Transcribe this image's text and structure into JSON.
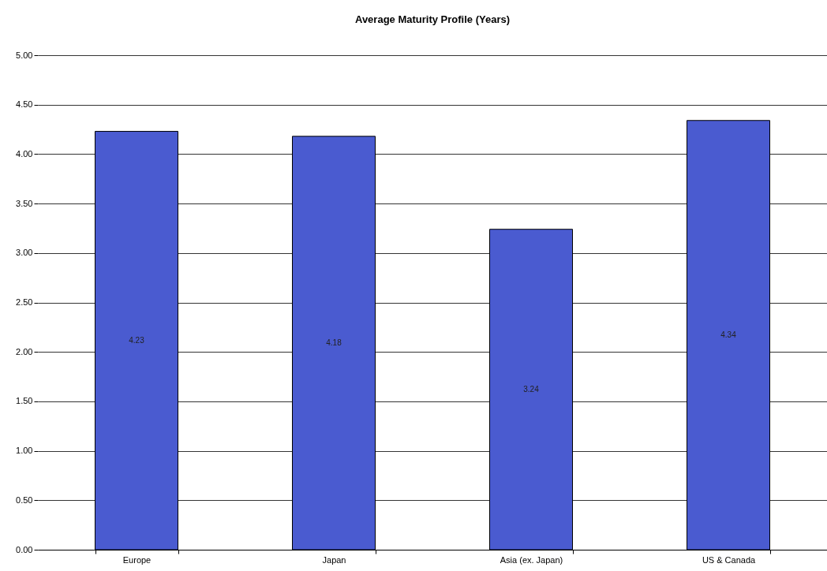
{
  "chart_data": {
    "type": "bar",
    "title": "Average Maturity Profile (Years)",
    "categories": [
      "Europe",
      "Japan",
      "Asia (ex. Japan)",
      "US & Canada"
    ],
    "values": [
      4.23,
      4.18,
      3.24,
      4.34
    ],
    "color": "#4a5bd0",
    "ylim": [
      0,
      5
    ],
    "yticks": [
      {
        "value": 0,
        "label": "0.00"
      },
      {
        "value": 0.5,
        "label": "0.50"
      },
      {
        "value": 1,
        "label": "1.00"
      },
      {
        "value": 1.5,
        "label": "1.50"
      },
      {
        "value": 2,
        "label": "2.00"
      },
      {
        "value": 2.5,
        "label": "2.50"
      },
      {
        "value": 3,
        "label": "3.00"
      },
      {
        "value": 3.5,
        "label": "3.50"
      },
      {
        "value": 4,
        "label": "4.00"
      },
      {
        "value": 4.5,
        "label": "4.50"
      },
      {
        "value": 5,
        "label": "5.00"
      }
    ],
    "grid": "y",
    "data_labels": true
  }
}
